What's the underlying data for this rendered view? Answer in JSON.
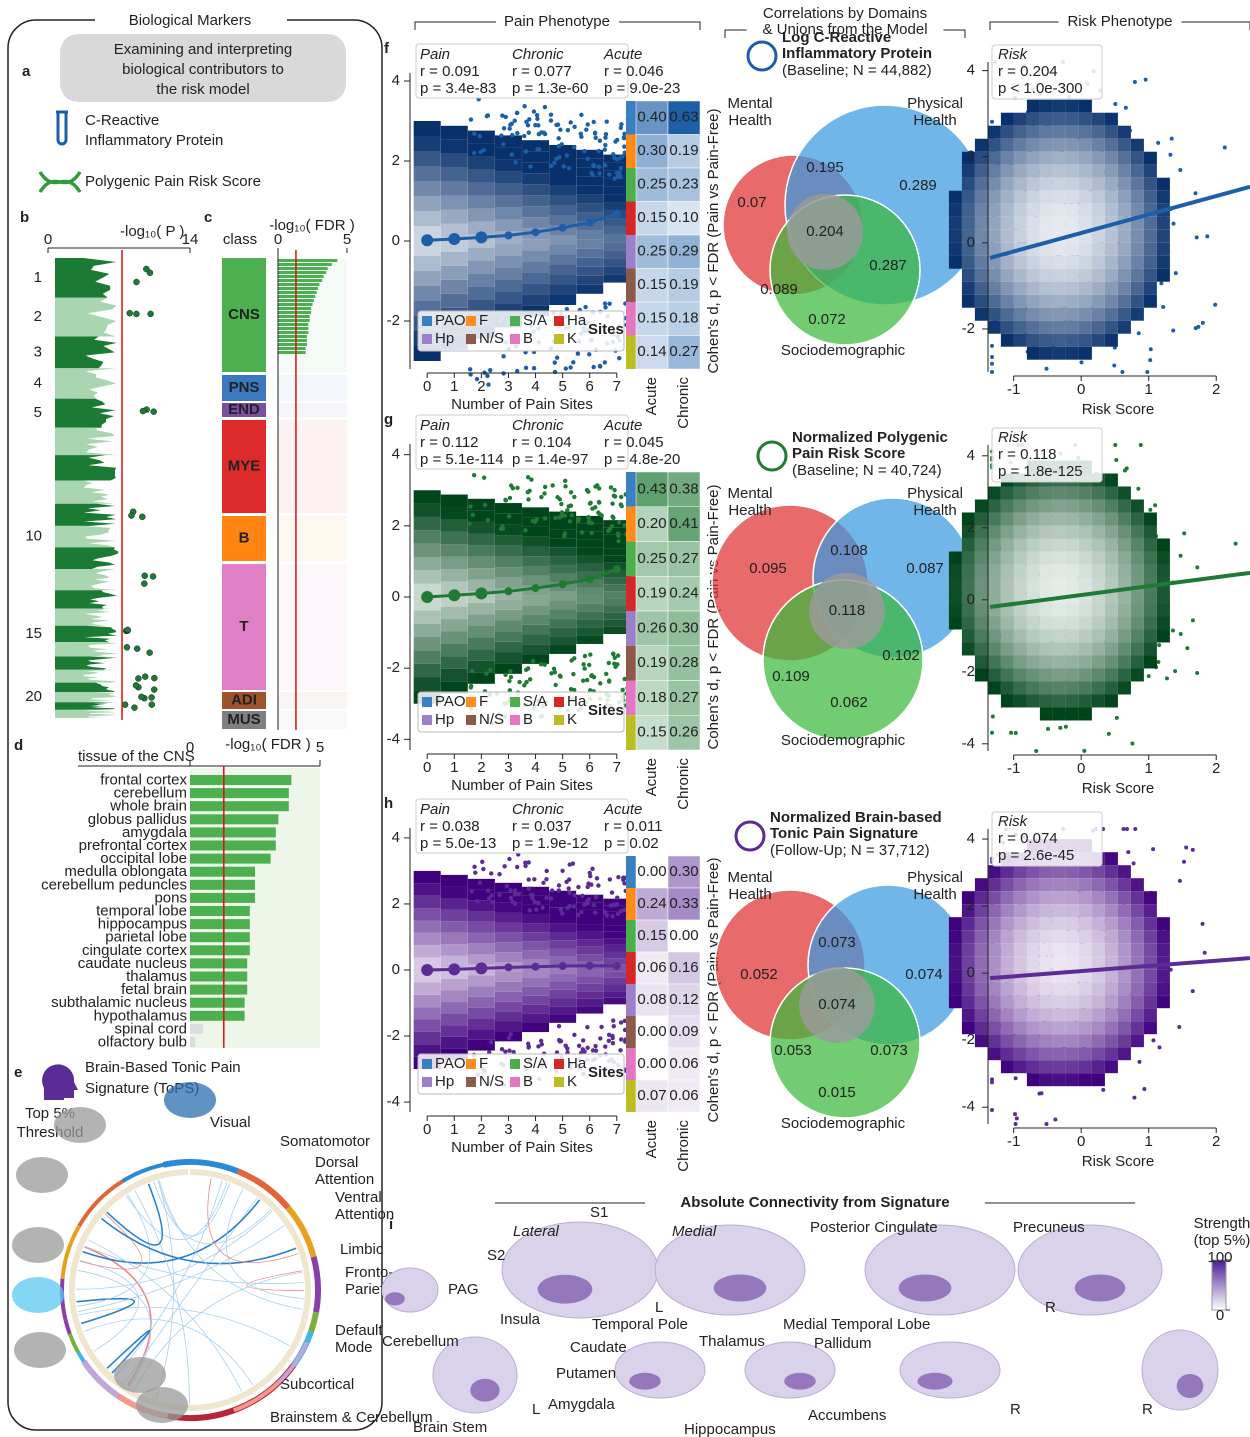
{
  "labels": {
    "a": "a",
    "b": "b",
    "c": "c",
    "d": "d",
    "e": "e",
    "f": "f",
    "g": "g",
    "h": "h",
    "i": "i"
  },
  "left": {
    "title": "Biological Markers",
    "intro": [
      "Examining and interpreting",
      "biological contributors to",
      "the risk model"
    ],
    "crp": [
      "C-Reactive",
      "Inflammatory Protein"
    ],
    "prs": "Polygenic Pain Risk Score"
  },
  "manhattan": {
    "type": "manhattan",
    "xlabel": "-log₁₀( P )",
    "xlim": [
      0,
      14
    ],
    "xticks": [
      0,
      14
    ],
    "threshold": 7.3,
    "categories": [
      "1",
      "2",
      "3",
      "4",
      "5",
      null,
      null,
      null,
      null,
      "10",
      null,
      null,
      null,
      null,
      "15",
      null,
      null,
      null,
      null,
      "20",
      null,
      null
    ],
    "colors": [
      "#1b7a34",
      "#a9d6b1"
    ]
  },
  "classes": {
    "type": "bar",
    "header": "class",
    "xlabel": "-log₁₀( FDR )",
    "xlim": [
      0,
      5
    ],
    "xticks": [
      0,
      5
    ],
    "threshold": 1.3,
    "categories": [
      "CNS",
      "PNS",
      "END",
      "MYE",
      "B",
      "T",
      "ADI",
      "MUS"
    ],
    "colors": [
      "#4caf50",
      "#3a78c0",
      "#7b4fa0",
      "#dd2a2a",
      "#ff8412",
      "#e07fc5",
      "#a0522d",
      "#808080"
    ],
    "cns_values": [
      4.3,
      3.9,
      3.6,
      3.5,
      3.3,
      3.2,
      3.0,
      2.9,
      2.8,
      2.7,
      2.6,
      2.5,
      2.4,
      2.4,
      2.3,
      2.3,
      2.2,
      2.2,
      2.2,
      2.1,
      2.1,
      2.1,
      2.0,
      2.0
    ],
    "bar_color": "#4caf50"
  },
  "tissues": {
    "type": "bar",
    "header": "tissue of the CNS",
    "xlabel": "-log₁₀( FDR )",
    "xlim": [
      0,
      5
    ],
    "xticks": [
      0,
      5
    ],
    "threshold": 1.3,
    "categories": [
      "frontal cortex",
      "cerebellum",
      "whole brain",
      "globus pallidus",
      "amygdala",
      "prefrontal cortex",
      "occipital lobe",
      "medulla oblongata",
      "cerebellum peduncles",
      "pons",
      "temporal lobe",
      "hippocampus",
      "parietal lobe",
      "cingulate cortex",
      "caudate nucleus",
      "thalamus",
      "fetal brain",
      "subthalamic nucleus",
      "hypothalamus",
      "spinal cord",
      "olfactory bulb"
    ],
    "values": [
      3.9,
      3.8,
      3.8,
      3.4,
      3.3,
      3.3,
      3.1,
      2.5,
      2.5,
      2.5,
      2.3,
      2.3,
      2.3,
      2.3,
      2.2,
      2.2,
      2.2,
      2.1,
      2.1,
      0.5,
      0.2
    ],
    "color": "#4caf50",
    "nonsig_color": "#dcdcdc"
  },
  "tops": {
    "title": [
      "Brain-Based Tonic Pain",
      "Signature (ToPS)"
    ],
    "threshold": [
      "Top 5%",
      "Threshold"
    ],
    "networks": [
      {
        "lines": [
          "Visual"
        ],
        "color": "#2a8ad6"
      },
      {
        "lines": [
          "Somatomotor"
        ],
        "color": "#e0663a"
      },
      {
        "lines": [
          "Dorsal",
          "Attention"
        ],
        "color": "#e8a020"
      },
      {
        "lines": [
          "Ventral",
          "Attention"
        ],
        "color": "#8a3fa8"
      },
      {
        "lines": [
          "Limbic"
        ],
        "color": "#7cae3a"
      },
      {
        "lines": [
          "Fronto-",
          "Parietal"
        ],
        "color": "#3fb4e8"
      },
      {
        "lines": [
          "Default",
          "Mode"
        ],
        "color": "#b5263a"
      },
      {
        "lines": [
          "Subcortical"
        ],
        "color": "#f29a8c"
      },
      {
        "lines": [
          "Brainstem & Cerebellum"
        ],
        "color": "#c3a6d8"
      }
    ]
  },
  "headers": {
    "pain": "Pain Phenotype",
    "venn": [
      "Correlations by Domains",
      "& Unions from the Model"
    ],
    "risk": "Risk Phenotype"
  },
  "pain_axis": {
    "xlabel": "Number of Pain Sites",
    "xlim": [
      -0.45,
      7.45
    ],
    "xticks": [
      0,
      1,
      2,
      3,
      4,
      5,
      6,
      7
    ],
    "x": [
      0,
      1,
      2,
      3,
      4,
      5,
      6,
      7
    ],
    "ylabel": "Cohen's d, p < FDR (Pain vs Pain-Free)",
    "columns": [
      "Acute",
      "Chronic"
    ],
    "column_colors": [
      "#f0a020",
      "#e0201b"
    ]
  },
  "sites_legend": {
    "title": "Sites",
    "names": [
      "PAO",
      "F",
      "S/A",
      "Ha",
      "Hp",
      "N/S",
      "B",
      "K"
    ],
    "colors": [
      "#3a7fc0",
      "#ff8c1a",
      "#4cae4c",
      "#d62728",
      "#9b7fc8",
      "#8c5a4b",
      "#e377c2",
      "#bcbd22"
    ]
  },
  "venn_labels": {
    "mental": [
      "Mental",
      "Health"
    ],
    "physical": [
      "Physical",
      "Health"
    ],
    "socio": "Sociodemographic",
    "colors": [
      "#e03030",
      "#3a9ae0",
      "#3cb83c"
    ]
  },
  "risk_axis": {
    "xlabel": "Risk Score",
    "xlim": [
      -1.35,
      2.5
    ],
    "xticks": [
      -1,
      0,
      1,
      2
    ]
  },
  "rows": [
    {
      "color": "#1c5ea8",
      "dark_color": "#08306b",
      "pain": {
        "stats": [
          {
            "name": "Pain",
            "r": "r = 0.091",
            "p": "p = 3.4e-83"
          },
          {
            "name": "Chronic",
            "r": "r = 0.077",
            "p": "p = 1.3e-60"
          },
          {
            "name": "Acute",
            "r": "r = 0.046",
            "p": "p = 9.0e-23"
          }
        ],
        "ylim": [
          -3.2,
          4.2
        ],
        "yticks": [
          -2,
          0,
          2,
          4
        ],
        "means": [
          0.02,
          0.05,
          0.09,
          0.14,
          0.22,
          0.33,
          0.46,
          0.68
        ]
      },
      "sites": {
        "acute": [
          "0.40",
          "0.30",
          "0.25",
          "0.15",
          "0.25",
          "0.15",
          "0.15",
          "0.14"
        ],
        "chronic": [
          "0.63",
          "0.19",
          "0.23",
          "0.10",
          "0.29",
          "0.19",
          "0.18",
          "0.27"
        ]
      },
      "venn": {
        "title": [
          "Log C-Reactive",
          "Inflammatory Protein"
        ],
        "subtitle": "(Baseline; N = 44,882)",
        "values": [
          0.07,
          0.195,
          0.289,
          0.204,
          0.089,
          0.287,
          0.072
        ]
      },
      "risk": {
        "name": "Risk",
        "r": "r = 0.204",
        "p": "p < 1.0e-300",
        "ylim": [
          -3,
          4.2
        ],
        "yticks": [
          -2,
          0,
          2,
          4
        ],
        "fit": {
          "x": [
            -1.35,
            2.5
          ],
          "y": [
            -0.35,
            1.3
          ]
        }
      }
    },
    {
      "color": "#1f7a35",
      "dark_color": "#00441b",
      "pain": {
        "stats": [
          {
            "name": "Pain",
            "r": "r = 0.112",
            "p": "p = 5.1e-114"
          },
          {
            "name": "Chronic",
            "r": "r = 0.104",
            "p": "p = 1.4e-97"
          },
          {
            "name": "Acute",
            "r": "r = 0.045",
            "p": "p = 4.8e-20"
          }
        ],
        "ylim": [
          -4.3,
          4.3
        ],
        "yticks": [
          -4,
          -2,
          0,
          2,
          4
        ],
        "means": [
          0.0,
          0.05,
          0.1,
          0.16,
          0.25,
          0.36,
          0.5,
          0.78
        ]
      },
      "sites": {
        "acute": [
          "0.43",
          "0.20",
          "0.25",
          "0.19",
          "0.26",
          "0.19",
          "0.18",
          "0.15"
        ],
        "chronic": [
          "0.38",
          "0.41",
          "0.27",
          "0.24",
          "0.30",
          "0.28",
          "0.27",
          "0.26"
        ]
      },
      "venn": {
        "title": [
          "Normalized Polygenic",
          "Pain Risk Score"
        ],
        "subtitle": "(Baseline; N = 40,724)",
        "values": [
          0.095,
          0.108,
          0.087,
          0.118,
          0.109,
          0.102,
          0.062
        ]
      },
      "risk": {
        "name": "Risk",
        "r": "r = 0.118",
        "p": "p = 1.8e-125",
        "ylim": [
          -4.2,
          4.3
        ],
        "yticks": [
          -4,
          -2,
          0,
          2,
          4
        ],
        "fit": {
          "x": [
            -1.35,
            2.5
          ],
          "y": [
            -0.2,
            0.75
          ]
        }
      }
    },
    {
      "color": "#5b2c95",
      "dark_color": "#3f007d",
      "pain": {
        "stats": [
          {
            "name": "Pain",
            "r": "r = 0.038",
            "p": "p = 5.0e-13"
          },
          {
            "name": "Chronic",
            "r": "r = 0.037",
            "p": "p = 1.9e-12"
          },
          {
            "name": "Acute",
            "r": "r = 0.011",
            "p": "p = 0.02"
          }
        ],
        "ylim": [
          -4.3,
          4.3
        ],
        "yticks": [
          -4,
          -2,
          0,
          2,
          4
        ],
        "means": [
          0.0,
          0.02,
          0.05,
          0.08,
          0.1,
          0.12,
          0.13,
          0.12
        ]
      },
      "sites": {
        "acute": [
          "0.00",
          "0.24",
          "0.15",
          "0.06",
          "0.08",
          "0.00",
          "0.00",
          "0.07"
        ],
        "chronic": [
          "0.30",
          "0.33",
          "0.00",
          "0.16",
          "0.12",
          "0.09",
          "0.06",
          "0.06"
        ]
      },
      "venn": {
        "title": [
          "Normalized Brain-based",
          "Tonic Pain Signature"
        ],
        "subtitle": "(Follow-Up;  N = 37,712)",
        "values": [
          0.052,
          0.073,
          0.074,
          0.074,
          0.053,
          0.073,
          0.015
        ]
      },
      "risk": {
        "name": "Risk",
        "r": "r = 0.074",
        "p": "p = 2.6e-45",
        "ylim": [
          -4.5,
          4.3
        ],
        "yticks": [
          -4,
          -2,
          0,
          2,
          4
        ],
        "fit": {
          "x": [
            -1.35,
            2.5
          ],
          "y": [
            -0.15,
            0.45
          ]
        }
      }
    }
  ],
  "connectivity": {
    "title": "Absolute Connectivity from Signature",
    "labels": [
      "Lateral",
      "Medial",
      "S1",
      "S2",
      "Insula",
      "Temporal Pole",
      "L",
      "PAG",
      "Posterior Cingulate",
      "Precuneus",
      "Medial Temporal Lobe",
      "R",
      "Cerebellum",
      "Brain Stem",
      "L",
      "Caudate",
      "Putamen",
      "Thalamus",
      "Amygdala",
      "Hippocampus",
      "Pallidum",
      "Accumbens",
      "R",
      "R"
    ],
    "strength": [
      "Strength",
      "(top 5%)"
    ],
    "cbar_lim": [
      0,
      100
    ],
    "cbar_ticks": [
      100,
      0
    ],
    "cbar_colors": [
      "#ffffff",
      "#4a1d96"
    ]
  }
}
